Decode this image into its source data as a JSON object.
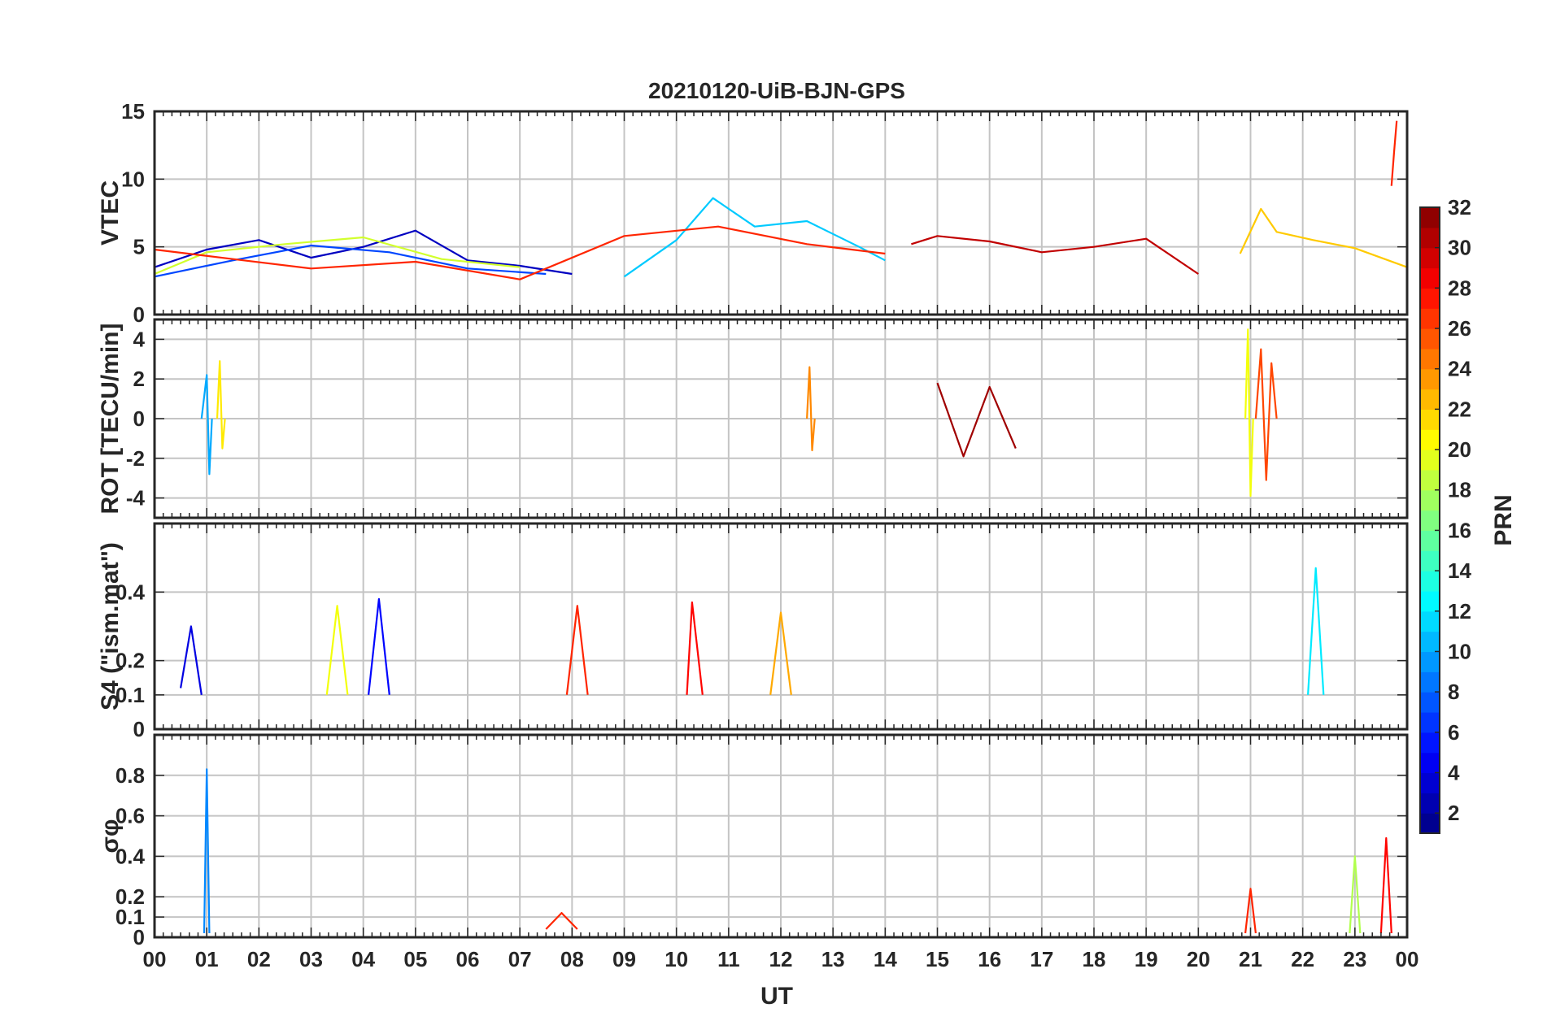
{
  "figure": {
    "title": "20210120-UiB-BJN-GPS",
    "xlabel": "UT"
  },
  "chart_data": [
    {
      "type": "line",
      "panel": "vtec",
      "ylabel": "VTEC",
      "ylim": [
        0,
        15
      ],
      "yticks": [
        0,
        5,
        10,
        15
      ],
      "grid": true,
      "series": [
        {
          "prn": 3,
          "x": [
            0.0,
            1.0,
            2.0,
            3.0,
            4.0,
            5.0,
            6.0,
            7.0,
            8.0
          ],
          "y": [
            3.5,
            4.8,
            5.5,
            4.2,
            5.0,
            6.2,
            4.0,
            3.6,
            3.0
          ]
        },
        {
          "prn": 7,
          "x": [
            0.0,
            1.5,
            3.0,
            4.5,
            6.0,
            7.5
          ],
          "y": [
            2.8,
            4.0,
            5.1,
            4.6,
            3.4,
            3.0
          ]
        },
        {
          "prn": 11,
          "x": [
            9.0,
            10.0,
            10.7,
            11.5,
            12.5,
            13.5,
            14.0
          ],
          "y": [
            2.8,
            5.5,
            8.6,
            6.5,
            6.9,
            5.0,
            4.0
          ]
        },
        {
          "prn": 19,
          "x": [
            0.0,
            1.0,
            2.5,
            4.0,
            5.5,
            7.0
          ],
          "y": [
            3.0,
            4.6,
            5.2,
            5.7,
            4.1,
            3.5
          ]
        },
        {
          "prn": 22,
          "x": [
            20.8,
            21.2,
            21.5,
            22.2,
            23.0,
            24.0
          ],
          "y": [
            4.5,
            7.8,
            6.1,
            5.5,
            4.9,
            3.5
          ]
        },
        {
          "prn": 27,
          "x": [
            0.0,
            1.5,
            3.0,
            5.0,
            7.0,
            9.0,
            10.8,
            12.5,
            14.0
          ],
          "y": [
            4.8,
            4.1,
            3.4,
            3.9,
            2.6,
            5.8,
            6.5,
            5.2,
            4.5
          ]
        },
        {
          "prn": 27,
          "x": [
            23.7,
            23.75,
            23.8
          ],
          "y": [
            9.5,
            12.0,
            14.3
          ]
        },
        {
          "prn": 30,
          "x": [
            14.5,
            15.0,
            16.0,
            17.0,
            18.0,
            19.0,
            20.0
          ],
          "y": [
            5.2,
            5.8,
            5.4,
            4.6,
            5.0,
            5.6,
            3.0
          ]
        }
      ]
    },
    {
      "type": "line",
      "panel": "rot",
      "ylabel": "ROT [TECU/min]",
      "ylim": [
        -5,
        5
      ],
      "yticks": [
        -4,
        -2,
        0,
        2,
        4
      ],
      "grid": true,
      "series": [
        {
          "prn": 10,
          "x": [
            0.9,
            1.0,
            1.05,
            1.1
          ],
          "y": [
            0.0,
            2.2,
            -2.8,
            0.0
          ]
        },
        {
          "prn": 21,
          "x": [
            1.2,
            1.25,
            1.3,
            1.35
          ],
          "y": [
            0.0,
            2.9,
            -1.5,
            0.0
          ]
        },
        {
          "prn": 24,
          "x": [
            12.5,
            12.55,
            12.6,
            12.65
          ],
          "y": [
            0.0,
            2.6,
            -1.6,
            0.0
          ]
        },
        {
          "prn": 20,
          "x": [
            20.9,
            20.95,
            21.0,
            21.05
          ],
          "y": [
            0.0,
            4.5,
            -3.9,
            0.0
          ]
        },
        {
          "prn": 26,
          "x": [
            21.1,
            21.2,
            21.3,
            21.4,
            21.5
          ],
          "y": [
            0.0,
            3.5,
            -3.1,
            2.8,
            0.0
          ]
        },
        {
          "prn": 31,
          "x": [
            15.0,
            15.5,
            16.0,
            16.5
          ],
          "y": [
            1.8,
            -1.9,
            1.6,
            -1.5
          ]
        }
      ]
    },
    {
      "type": "line",
      "panel": "s4",
      "ylabel": "S4 (\"ism.mat\")",
      "ylim": [
        0,
        0.6
      ],
      "yticks": [
        0,
        0.1,
        0.2,
        0.4
      ],
      "grid": true,
      "series": [
        {
          "prn": 4,
          "x": [
            0.5,
            0.7,
            0.9
          ],
          "y": [
            0.12,
            0.3,
            0.1
          ]
        },
        {
          "prn": 5,
          "x": [
            4.1,
            4.3,
            4.5
          ],
          "y": [
            0.1,
            0.38,
            0.1
          ]
        },
        {
          "prn": 20,
          "x": [
            3.3,
            3.5,
            3.7
          ],
          "y": [
            0.1,
            0.36,
            0.1
          ]
        },
        {
          "prn": 27,
          "x": [
            7.9,
            8.1,
            8.3
          ],
          "y": [
            0.1,
            0.36,
            0.1
          ]
        },
        {
          "prn": 28,
          "x": [
            10.2,
            10.3,
            10.5
          ],
          "y": [
            0.1,
            0.37,
            0.1
          ]
        },
        {
          "prn": 23,
          "x": [
            11.8,
            12.0,
            12.2
          ],
          "y": [
            0.1,
            0.34,
            0.1
          ]
        },
        {
          "prn": 12,
          "x": [
            22.1,
            22.25,
            22.4
          ],
          "y": [
            0.1,
            0.47,
            0.1
          ]
        }
      ]
    },
    {
      "type": "line",
      "panel": "sigma_phi",
      "ylabel": "σφ",
      "ylim": [
        0,
        1.0
      ],
      "yticks": [
        0,
        0.1,
        0.2,
        0.4,
        0.6,
        0.8
      ],
      "grid": true,
      "series": [
        {
          "prn": 9,
          "x": [
            0.95,
            1.0,
            1.05
          ],
          "y": [
            0.02,
            0.83,
            0.02
          ]
        },
        {
          "prn": 27,
          "x": [
            7.5,
            7.8,
            8.1
          ],
          "y": [
            0.04,
            0.12,
            0.04
          ]
        },
        {
          "prn": 27,
          "x": [
            20.9,
            21.0,
            21.1
          ],
          "y": [
            0.02,
            0.24,
            0.02
          ]
        },
        {
          "prn": 18,
          "x": [
            22.9,
            23.0,
            23.1
          ],
          "y": [
            0.02,
            0.4,
            0.02
          ]
        },
        {
          "prn": 28,
          "x": [
            23.5,
            23.6,
            23.7
          ],
          "y": [
            0.02,
            0.49,
            0.02
          ]
        }
      ]
    }
  ],
  "x_axis": {
    "range": [
      0,
      24
    ],
    "tick_labels": [
      "00",
      "01",
      "02",
      "03",
      "04",
      "05",
      "06",
      "07",
      "08",
      "09",
      "10",
      "11",
      "12",
      "13",
      "14",
      "15",
      "16",
      "17",
      "18",
      "19",
      "20",
      "21",
      "22",
      "23",
      "00"
    ]
  },
  "colorbar": {
    "label": "PRN",
    "range": [
      1,
      32
    ],
    "ticks": [
      2,
      4,
      6,
      8,
      10,
      12,
      14,
      16,
      18,
      20,
      22,
      24,
      26,
      28,
      30,
      32
    ],
    "colormap": "jet"
  }
}
